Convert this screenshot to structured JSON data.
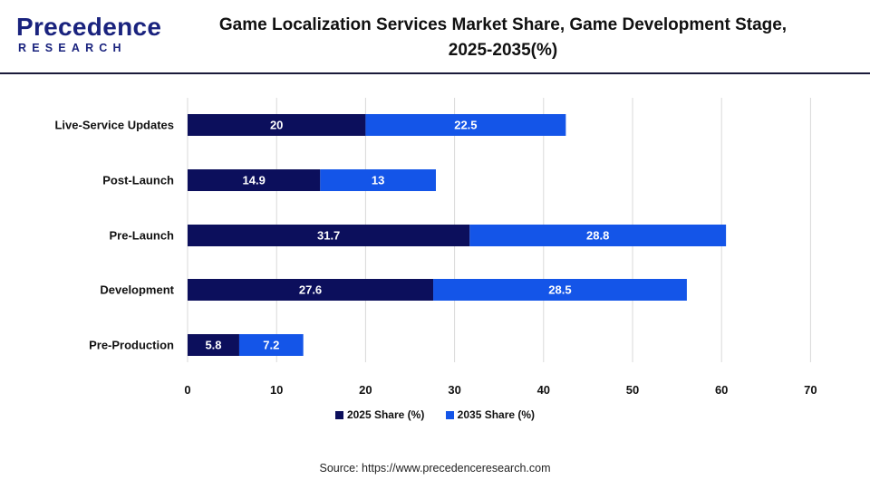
{
  "header": {
    "logo_main": "Precedence",
    "logo_sub": "RESEARCH",
    "title_line1": "Game Localization Services Market Share, Game Development Stage,",
    "title_line2": "2025-2035(%)"
  },
  "source": "Source: https://www.precedenceresearch.com",
  "colors": {
    "series_2025": "#0c0f5c",
    "series_2035": "#1455e8",
    "logo": "#1a237e"
  },
  "chart_data": {
    "type": "bar",
    "orientation": "horizontal",
    "stacked": true,
    "title": "Game Localization Services Market Share, Game Development Stage, 2025-2035(%)",
    "categories": [
      "Live-Service Updates",
      "Post-Launch",
      "Pre-Launch",
      "Development",
      "Pre-Production"
    ],
    "series": [
      {
        "name": "2025 Share (%)",
        "values": [
          20,
          14.9,
          31.7,
          27.6,
          5.8
        ]
      },
      {
        "name": "2035 Share (%)",
        "values": [
          22.5,
          13,
          28.8,
          28.5,
          7.2
        ]
      }
    ],
    "xlim": [
      0,
      70
    ],
    "xticks": [
      "0",
      "10",
      "20",
      "30",
      "40",
      "50",
      "60",
      "70"
    ],
    "grid": "vertical",
    "legend": "bottom",
    "data_labels": true
  }
}
